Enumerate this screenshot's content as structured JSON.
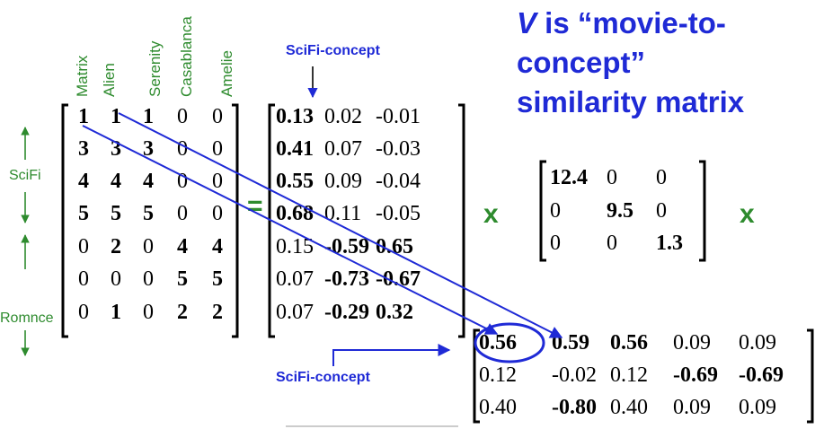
{
  "title": {
    "v": "V",
    "rest_line1": " is “movie-to-concept”",
    "line2": "similarity matrix"
  },
  "movies": [
    "Matrix",
    "Alien",
    "Serenity",
    "Casablanca",
    "Amelie"
  ],
  "row_labels": {
    "scifi": "SciFi",
    "romance": "Romnce"
  },
  "colors": {
    "blue": "#1f2ad6",
    "green": "#2e8b2e"
  },
  "annotations": {
    "top": "SciFi-concept",
    "bottom": "SciFi-concept"
  },
  "operators": {
    "equals": "=",
    "times1": "x",
    "times2": "x"
  },
  "A": [
    [
      {
        "t": "1",
        "b": true
      },
      {
        "t": "1",
        "b": true
      },
      {
        "t": "1",
        "b": true
      },
      {
        "t": "0",
        "b": false
      },
      {
        "t": "0",
        "b": false
      }
    ],
    [
      {
        "t": "3",
        "b": true
      },
      {
        "t": "3",
        "b": true
      },
      {
        "t": "3",
        "b": true
      },
      {
        "t": "0",
        "b": false
      },
      {
        "t": "0",
        "b": false
      }
    ],
    [
      {
        "t": "4",
        "b": true
      },
      {
        "t": "4",
        "b": true
      },
      {
        "t": "4",
        "b": true
      },
      {
        "t": "0",
        "b": false
      },
      {
        "t": "0",
        "b": false
      }
    ],
    [
      {
        "t": "5",
        "b": true
      },
      {
        "t": "5",
        "b": true
      },
      {
        "t": "5",
        "b": true
      },
      {
        "t": "0",
        "b": false
      },
      {
        "t": "0",
        "b": false
      }
    ],
    [
      {
        "t": "0",
        "b": false
      },
      {
        "t": "2",
        "b": true
      },
      {
        "t": "0",
        "b": false
      },
      {
        "t": "4",
        "b": true
      },
      {
        "t": "4",
        "b": true
      }
    ],
    [
      {
        "t": "0",
        "b": false
      },
      {
        "t": "0",
        "b": false
      },
      {
        "t": "0",
        "b": false
      },
      {
        "t": "5",
        "b": true
      },
      {
        "t": "5",
        "b": true
      }
    ],
    [
      {
        "t": "0",
        "b": false
      },
      {
        "t": "1",
        "b": true
      },
      {
        "t": "0",
        "b": false
      },
      {
        "t": "2",
        "b": true
      },
      {
        "t": "2",
        "b": true
      }
    ]
  ],
  "U": [
    [
      {
        "t": "0.13",
        "b": true
      },
      {
        "t": "0.02",
        "b": false
      },
      {
        "t": "-0.01",
        "b": false
      }
    ],
    [
      {
        "t": "0.41",
        "b": true
      },
      {
        "t": "0.07",
        "b": false
      },
      {
        "t": "-0.03",
        "b": false
      }
    ],
    [
      {
        "t": "0.55",
        "b": true
      },
      {
        "t": "0.09",
        "b": false
      },
      {
        "t": "-0.04",
        "b": false
      }
    ],
    [
      {
        "t": "0.68",
        "b": true
      },
      {
        "t": "0.11",
        "b": false
      },
      {
        "t": "-0.05",
        "b": false
      }
    ],
    [
      {
        "t": "0.15",
        "b": false
      },
      {
        "t": "-0.59",
        "b": true
      },
      {
        "t": "0.65",
        "b": true
      }
    ],
    [
      {
        "t": "0.07",
        "b": false
      },
      {
        "t": "-0.73",
        "b": true
      },
      {
        "t": "-0.67",
        "b": true
      }
    ],
    [
      {
        "t": "0.07",
        "b": false
      },
      {
        "t": "-0.29",
        "b": true
      },
      {
        "t": "0.32",
        "b": true
      }
    ]
  ],
  "S": [
    [
      {
        "t": "12.4",
        "b": true
      },
      {
        "t": "0",
        "b": false
      },
      {
        "t": "0",
        "b": false
      }
    ],
    [
      {
        "t": "0",
        "b": false
      },
      {
        "t": "9.5",
        "b": true
      },
      {
        "t": "0",
        "b": false
      }
    ],
    [
      {
        "t": "0",
        "b": false
      },
      {
        "t": "0",
        "b": false
      },
      {
        "t": "1.3",
        "b": true
      }
    ]
  ],
  "V": [
    [
      {
        "t": "0.56",
        "b": true
      },
      {
        "t": "0.59",
        "b": true
      },
      {
        "t": "0.56",
        "b": true
      },
      {
        "t": "0.09",
        "b": false
      },
      {
        "t": "0.09",
        "b": false
      }
    ],
    [
      {
        "t": "0.12",
        "b": false
      },
      {
        "t": "-0.02",
        "b": false
      },
      {
        "t": "0.12",
        "b": false
      },
      {
        "t": "-0.69",
        "b": true
      },
      {
        "t": "-0.69",
        "b": true
      }
    ],
    [
      {
        "t": "0.40",
        "b": false
      },
      {
        "t": "-0.80",
        "b": true
      },
      {
        "t": "0.40",
        "b": false
      },
      {
        "t": "0.09",
        "b": false
      },
      {
        "t": "0.09",
        "b": false
      }
    ]
  ]
}
